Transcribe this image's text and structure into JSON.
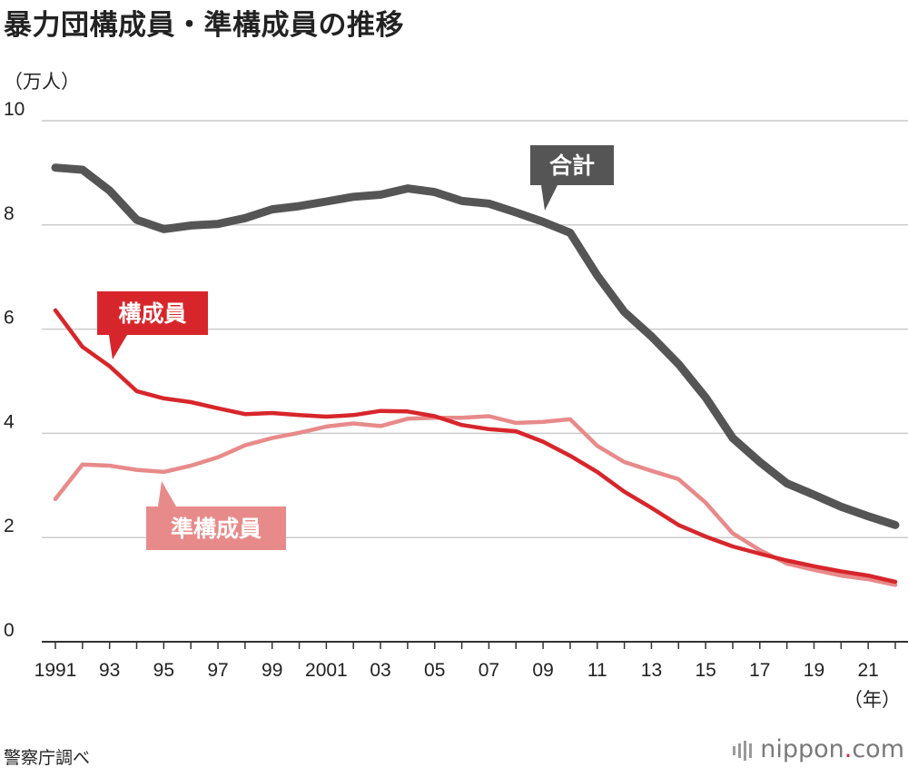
{
  "title": "暴力団構成員・準構成員の推移",
  "y_unit": "（万人）",
  "x_unit": "（年）",
  "source": "警察庁調べ",
  "logo": {
    "prefix": "nippon",
    "dot": ".",
    "suffix": "com"
  },
  "callouts": {
    "total": "合計",
    "members": "構成員",
    "quasi": "準構成員"
  },
  "colors": {
    "total": "#555555",
    "members": "#d7262b",
    "quasi": "#e88a8a"
  },
  "chart_data": {
    "type": "line",
    "title": "暴力団構成員・準構成員の推移",
    "ylabel": "（万人）",
    "xlabel": "（年）",
    "ylim": [
      0,
      10
    ],
    "yticks": [
      "0",
      "2",
      "4",
      "6",
      "8",
      "10"
    ],
    "xtick_labels": [
      "1991",
      "93",
      "95",
      "97",
      "99",
      "2001",
      "03",
      "05",
      "07",
      "09",
      "11",
      "13",
      "15",
      "17",
      "19",
      "21"
    ],
    "x": [
      1991,
      1992,
      1993,
      1994,
      1995,
      1996,
      1997,
      1998,
      1999,
      2000,
      2001,
      2002,
      2003,
      2004,
      2005,
      2006,
      2007,
      2008,
      2009,
      2010,
      2011,
      2012,
      2013,
      2014,
      2015,
      2016,
      2017,
      2018,
      2019,
      2020,
      2021,
      2022
    ],
    "series": [
      {
        "name": "合計",
        "key": "total",
        "values": [
          9.1,
          9.06,
          8.66,
          8.1,
          7.92,
          7.99,
          8.02,
          8.13,
          8.3,
          8.36,
          8.45,
          8.54,
          8.58,
          8.7,
          8.63,
          8.46,
          8.41,
          8.24,
          8.06,
          7.85,
          7.03,
          6.33,
          5.86,
          5.33,
          4.69,
          3.91,
          3.45,
          3.04,
          2.82,
          2.59,
          2.41,
          2.24
        ]
      },
      {
        "name": "構成員",
        "key": "members",
        "values": [
          6.36,
          5.66,
          5.29,
          4.81,
          4.67,
          4.6,
          4.48,
          4.37,
          4.39,
          4.35,
          4.32,
          4.35,
          4.43,
          4.42,
          4.33,
          4.16,
          4.08,
          4.04,
          3.84,
          3.57,
          3.26,
          2.88,
          2.57,
          2.24,
          2.02,
          1.83,
          1.69,
          1.56,
          1.45,
          1.35,
          1.27,
          1.15
        ]
      },
      {
        "name": "準構成員",
        "key": "quasi",
        "values": [
          2.74,
          3.4,
          3.38,
          3.3,
          3.26,
          3.38,
          3.54,
          3.77,
          3.91,
          4.01,
          4.13,
          4.19,
          4.14,
          4.28,
          4.3,
          4.3,
          4.33,
          4.2,
          4.22,
          4.27,
          3.76,
          3.45,
          3.28,
          3.12,
          2.67,
          2.08,
          1.76,
          1.5,
          1.38,
          1.27,
          1.2,
          1.09
        ]
      }
    ]
  }
}
